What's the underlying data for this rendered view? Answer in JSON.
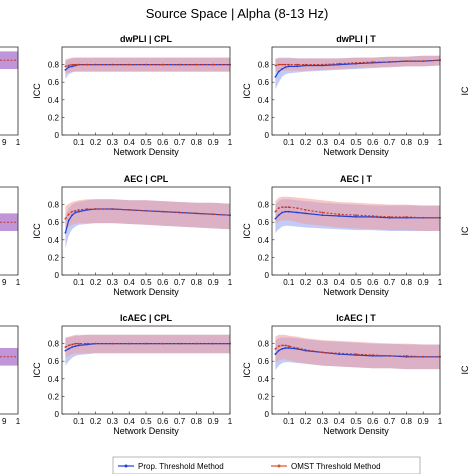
{
  "figure_title": "Source Space | Alpha (8-13 Hz)",
  "colors": {
    "prop": "#1f3fd6",
    "prop_band": "#8fa3f2",
    "omst": "#d9542b",
    "omst_band": "#f29a9a",
    "line_omst": "#c0392b"
  },
  "legend": {
    "prop_label": "Prop. Threshold Method",
    "omst_label": "OMST Threshold Method"
  },
  "chart_data": [
    {
      "type": "line",
      "title": "dwPLI | CPL",
      "xlabel": "Network Density",
      "ylabel": "ICC",
      "xlim": [
        0,
        1
      ],
      "ylim": [
        0,
        1
      ],
      "xticks": [
        "0.1",
        "0.2",
        "0.3",
        "0.4",
        "0.5",
        "0.6",
        "0.7",
        "0.8",
        "0.9",
        "1"
      ],
      "yticks": [
        "0",
        "0.2",
        "0.4",
        "0.6",
        "0.8"
      ],
      "x": [
        0.02,
        0.04,
        0.06,
        0.08,
        0.1,
        0.15,
        0.2,
        0.3,
        0.4,
        0.5,
        0.6,
        0.7,
        0.8,
        0.9,
        1.0
      ],
      "series": [
        {
          "name": "Prop. Threshold Method",
          "values": [
            0.74,
            0.77,
            0.78,
            0.79,
            0.8,
            0.8,
            0.8,
            0.8,
            0.8,
            0.8,
            0.8,
            0.8,
            0.8,
            0.8,
            0.8
          ],
          "lower": [
            0.64,
            0.69,
            0.71,
            0.72,
            0.72,
            0.72,
            0.72,
            0.72,
            0.72,
            0.72,
            0.72,
            0.72,
            0.72,
            0.72,
            0.72
          ],
          "upper": [
            0.84,
            0.86,
            0.87,
            0.88,
            0.88,
            0.88,
            0.88,
            0.88,
            0.88,
            0.88,
            0.88,
            0.88,
            0.88,
            0.88,
            0.88
          ]
        },
        {
          "name": "OMST Threshold Method",
          "values": [
            0.78,
            0.79,
            0.8,
            0.8,
            0.8,
            0.8,
            0.8,
            0.8,
            0.8,
            0.8,
            0.8,
            0.8,
            0.8,
            0.8,
            0.8
          ],
          "lower": [
            0.7,
            0.71,
            0.72,
            0.72,
            0.72,
            0.72,
            0.72,
            0.72,
            0.72,
            0.72,
            0.72,
            0.72,
            0.72,
            0.72,
            0.72
          ],
          "upper": [
            0.86,
            0.87,
            0.88,
            0.88,
            0.88,
            0.88,
            0.88,
            0.88,
            0.88,
            0.88,
            0.88,
            0.88,
            0.88,
            0.88,
            0.88
          ]
        }
      ]
    },
    {
      "type": "line",
      "title": "dwPLI | T",
      "xlabel": "Network Density",
      "ylabel": "ICC",
      "xlim": [
        0,
        1
      ],
      "ylim": [
        0,
        1
      ],
      "xticks": [
        "0.1",
        "0.2",
        "0.3",
        "0.4",
        "0.5",
        "0.6",
        "0.7",
        "0.8",
        "0.9",
        "1"
      ],
      "yticks": [
        "0",
        "0.2",
        "0.4",
        "0.6",
        "0.8"
      ],
      "x": [
        0.02,
        0.04,
        0.06,
        0.08,
        0.1,
        0.15,
        0.2,
        0.3,
        0.4,
        0.5,
        0.6,
        0.7,
        0.8,
        0.9,
        1.0
      ],
      "series": [
        {
          "name": "Prop. Threshold Method",
          "values": [
            0.66,
            0.72,
            0.75,
            0.77,
            0.78,
            0.78,
            0.79,
            0.79,
            0.8,
            0.81,
            0.82,
            0.83,
            0.84,
            0.84,
            0.85
          ],
          "lower": [
            0.52,
            0.6,
            0.66,
            0.69,
            0.7,
            0.71,
            0.72,
            0.73,
            0.74,
            0.75,
            0.76,
            0.77,
            0.78,
            0.78,
            0.79
          ],
          "upper": [
            0.86,
            0.88,
            0.88,
            0.88,
            0.88,
            0.87,
            0.87,
            0.87,
            0.87,
            0.88,
            0.88,
            0.89,
            0.89,
            0.9,
            0.9
          ]
        },
        {
          "name": "OMST Threshold Method",
          "values": [
            0.79,
            0.8,
            0.8,
            0.8,
            0.8,
            0.8,
            0.8,
            0.8,
            0.81,
            0.82,
            0.83,
            0.83,
            0.84,
            0.84,
            0.85
          ],
          "lower": [
            0.72,
            0.73,
            0.73,
            0.73,
            0.73,
            0.73,
            0.73,
            0.74,
            0.75,
            0.76,
            0.77,
            0.77,
            0.78,
            0.78,
            0.79
          ],
          "upper": [
            0.87,
            0.87,
            0.87,
            0.87,
            0.87,
            0.87,
            0.87,
            0.87,
            0.87,
            0.88,
            0.88,
            0.89,
            0.89,
            0.9,
            0.9
          ]
        }
      ]
    },
    {
      "type": "line",
      "title": "AEC | CPL",
      "xlabel": "Network Density",
      "ylabel": "ICC",
      "xlim": [
        0,
        1
      ],
      "ylim": [
        0,
        1
      ],
      "xticks": [
        "0.1",
        "0.2",
        "0.3",
        "0.4",
        "0.5",
        "0.6",
        "0.7",
        "0.8",
        "0.9",
        "1"
      ],
      "yticks": [
        "0",
        "0.2",
        "0.4",
        "0.6",
        "0.8"
      ],
      "x": [
        0.02,
        0.04,
        0.06,
        0.08,
        0.1,
        0.15,
        0.2,
        0.3,
        0.4,
        0.5,
        0.6,
        0.7,
        0.8,
        0.9,
        1.0
      ],
      "series": [
        {
          "name": "Prop. Threshold Method",
          "values": [
            0.48,
            0.62,
            0.68,
            0.71,
            0.72,
            0.74,
            0.75,
            0.75,
            0.74,
            0.73,
            0.72,
            0.71,
            0.7,
            0.69,
            0.68
          ],
          "lower": [
            0.3,
            0.45,
            0.52,
            0.55,
            0.57,
            0.58,
            0.59,
            0.59,
            0.58,
            0.57,
            0.56,
            0.55,
            0.54,
            0.53,
            0.52
          ],
          "upper": [
            0.66,
            0.76,
            0.8,
            0.82,
            0.83,
            0.85,
            0.86,
            0.86,
            0.85,
            0.85,
            0.84,
            0.83,
            0.82,
            0.82,
            0.81
          ]
        },
        {
          "name": "OMST Threshold Method",
          "values": [
            0.64,
            0.69,
            0.72,
            0.73,
            0.74,
            0.75,
            0.75,
            0.75,
            0.74,
            0.73,
            0.72,
            0.71,
            0.7,
            0.69,
            0.68
          ],
          "lower": [
            0.5,
            0.55,
            0.57,
            0.58,
            0.59,
            0.59,
            0.59,
            0.59,
            0.58,
            0.57,
            0.56,
            0.55,
            0.54,
            0.53,
            0.52
          ],
          "upper": [
            0.78,
            0.81,
            0.83,
            0.84,
            0.85,
            0.86,
            0.86,
            0.86,
            0.85,
            0.85,
            0.84,
            0.83,
            0.82,
            0.82,
            0.81
          ]
        }
      ]
    },
    {
      "type": "line",
      "title": "AEC | T",
      "xlabel": "Network Density",
      "ylabel": "ICC",
      "xlim": [
        0,
        1
      ],
      "ylim": [
        0,
        1
      ],
      "xticks": [
        "0.1",
        "0.2",
        "0.3",
        "0.4",
        "0.5",
        "0.6",
        "0.7",
        "0.8",
        "0.9",
        "1"
      ],
      "yticks": [
        "0",
        "0.2",
        "0.4",
        "0.6",
        "0.8"
      ],
      "x": [
        0.02,
        0.04,
        0.06,
        0.08,
        0.1,
        0.15,
        0.2,
        0.3,
        0.4,
        0.5,
        0.6,
        0.7,
        0.8,
        0.9,
        1.0
      ],
      "series": [
        {
          "name": "Prop. Threshold Method",
          "values": [
            0.64,
            0.68,
            0.71,
            0.72,
            0.72,
            0.71,
            0.7,
            0.68,
            0.67,
            0.66,
            0.66,
            0.65,
            0.65,
            0.65,
            0.65
          ],
          "lower": [
            0.48,
            0.52,
            0.55,
            0.56,
            0.56,
            0.55,
            0.54,
            0.53,
            0.52,
            0.51,
            0.51,
            0.5,
            0.5,
            0.5,
            0.5
          ],
          "upper": [
            0.8,
            0.84,
            0.86,
            0.86,
            0.86,
            0.85,
            0.84,
            0.82,
            0.81,
            0.8,
            0.79,
            0.79,
            0.79,
            0.79,
            0.79
          ]
        },
        {
          "name": "OMST Threshold Method",
          "values": [
            0.72,
            0.76,
            0.77,
            0.77,
            0.77,
            0.76,
            0.74,
            0.71,
            0.69,
            0.68,
            0.67,
            0.66,
            0.66,
            0.65,
            0.65
          ],
          "lower": [
            0.58,
            0.61,
            0.62,
            0.62,
            0.62,
            0.6,
            0.58,
            0.56,
            0.54,
            0.53,
            0.52,
            0.51,
            0.51,
            0.5,
            0.5
          ],
          "upper": [
            0.84,
            0.88,
            0.89,
            0.89,
            0.89,
            0.88,
            0.87,
            0.85,
            0.83,
            0.82,
            0.81,
            0.8,
            0.8,
            0.79,
            0.79
          ]
        }
      ]
    },
    {
      "type": "line",
      "title": "lcAEC | CPL",
      "xlabel": "Network Density",
      "ylabel": "ICC",
      "xlim": [
        0,
        1
      ],
      "ylim": [
        0,
        1
      ],
      "xticks": [
        "0.1",
        "0.2",
        "0.3",
        "0.4",
        "0.5",
        "0.6",
        "0.7",
        "0.8",
        "0.9",
        "1"
      ],
      "yticks": [
        "0",
        "0.2",
        "0.4",
        "0.6",
        "0.8"
      ],
      "x": [
        0.02,
        0.04,
        0.06,
        0.08,
        0.1,
        0.15,
        0.2,
        0.3,
        0.4,
        0.5,
        0.6,
        0.7,
        0.8,
        0.9,
        1.0
      ],
      "series": [
        {
          "name": "Prop. Threshold Method",
          "values": [
            0.72,
            0.74,
            0.76,
            0.77,
            0.78,
            0.79,
            0.8,
            0.8,
            0.8,
            0.8,
            0.8,
            0.8,
            0.8,
            0.8,
            0.8
          ],
          "lower": [
            0.55,
            0.6,
            0.64,
            0.66,
            0.67,
            0.68,
            0.69,
            0.69,
            0.69,
            0.69,
            0.69,
            0.69,
            0.69,
            0.69,
            0.69
          ],
          "upper": [
            0.86,
            0.87,
            0.88,
            0.89,
            0.89,
            0.9,
            0.9,
            0.9,
            0.9,
            0.9,
            0.9,
            0.9,
            0.9,
            0.9,
            0.9
          ]
        },
        {
          "name": "OMST Threshold Method",
          "values": [
            0.76,
            0.78,
            0.79,
            0.8,
            0.8,
            0.8,
            0.8,
            0.8,
            0.8,
            0.8,
            0.8,
            0.8,
            0.8,
            0.8,
            0.8
          ],
          "lower": [
            0.64,
            0.66,
            0.68,
            0.69,
            0.69,
            0.69,
            0.69,
            0.69,
            0.69,
            0.69,
            0.69,
            0.69,
            0.69,
            0.69,
            0.69
          ],
          "upper": [
            0.87,
            0.88,
            0.89,
            0.9,
            0.9,
            0.9,
            0.9,
            0.9,
            0.9,
            0.9,
            0.9,
            0.9,
            0.9,
            0.9,
            0.9
          ]
        }
      ]
    },
    {
      "type": "line",
      "title": "lcAEC | T",
      "xlabel": "Network Density",
      "ylabel": "ICC",
      "xlim": [
        0,
        1
      ],
      "ylim": [
        0,
        1
      ],
      "xticks": [
        "0.1",
        "0.2",
        "0.3",
        "0.4",
        "0.5",
        "0.6",
        "0.7",
        "0.8",
        "0.9",
        "1"
      ],
      "yticks": [
        "0",
        "0.2",
        "0.4",
        "0.6",
        "0.8"
      ],
      "x": [
        0.02,
        0.04,
        0.06,
        0.08,
        0.1,
        0.15,
        0.2,
        0.3,
        0.4,
        0.5,
        0.6,
        0.7,
        0.8,
        0.9,
        1.0
      ],
      "series": [
        {
          "name": "Prop. Threshold Method",
          "values": [
            0.68,
            0.72,
            0.74,
            0.75,
            0.75,
            0.74,
            0.72,
            0.7,
            0.68,
            0.67,
            0.66,
            0.66,
            0.65,
            0.65,
            0.65
          ],
          "lower": [
            0.5,
            0.55,
            0.58,
            0.59,
            0.59,
            0.58,
            0.57,
            0.55,
            0.54,
            0.53,
            0.52,
            0.52,
            0.51,
            0.51,
            0.51
          ],
          "upper": [
            0.84,
            0.86,
            0.87,
            0.87,
            0.87,
            0.86,
            0.85,
            0.83,
            0.82,
            0.81,
            0.8,
            0.8,
            0.79,
            0.79,
            0.79
          ]
        },
        {
          "name": "OMST Threshold Method",
          "values": [
            0.74,
            0.77,
            0.78,
            0.78,
            0.77,
            0.75,
            0.73,
            0.7,
            0.69,
            0.68,
            0.67,
            0.66,
            0.66,
            0.65,
            0.65
          ],
          "lower": [
            0.58,
            0.61,
            0.62,
            0.62,
            0.61,
            0.59,
            0.57,
            0.55,
            0.54,
            0.53,
            0.52,
            0.52,
            0.51,
            0.51,
            0.51
          ],
          "upper": [
            0.88,
            0.9,
            0.9,
            0.9,
            0.89,
            0.88,
            0.86,
            0.84,
            0.83,
            0.82,
            0.81,
            0.8,
            0.8,
            0.79,
            0.79
          ]
        }
      ]
    }
  ],
  "partial_left": {
    "yvals": [
      0.85,
      0.6,
      0.65
    ],
    "colors": [
      "#b07ad0",
      "#b07ad0",
      "#b07ad0"
    ],
    "tick_labels": [
      "9",
      "1",
      "9",
      "1",
      "9",
      "1"
    ]
  },
  "partial_right_tick": "IC"
}
